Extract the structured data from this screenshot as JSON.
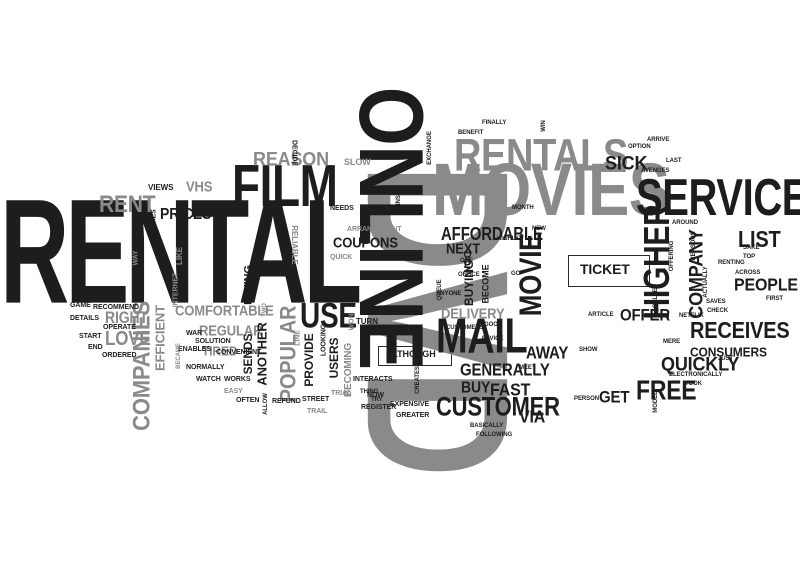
{
  "words": {
    "rental": "Rental",
    "dvd": "DVD",
    "online": "Online",
    "movies": "Movies",
    "service": "Service",
    "film": "Film",
    "rentals": "Rentals",
    "mail": "Mail",
    "customer": "Customer",
    "higher": "Higher",
    "movie": "Movie",
    "companies": "Companies",
    "use": "Use",
    "popular": "Popular",
    "reason": "Reason",
    "rent": "Rent",
    "affordable": "Affordable",
    "receives": "Receives",
    "company": "Company",
    "quickly": "Quickly",
    "free": "Free",
    "list": "List",
    "people": "People",
    "consumers": "Consumers",
    "sick": "Sick",
    "ticket": "Ticket",
    "offer": "Offer",
    "get": "Get",
    "via": "Via",
    "fast": "Fast",
    "buy": "Buy",
    "films": "Films",
    "generally": "Generally",
    "away": "Away",
    "delivery": "Delivery",
    "buying": "Buying",
    "next": "Next",
    "don": "Don",
    "become": "Become",
    "coupons": "Coupons",
    "prices": "Prices",
    "vhs": "VHS",
    "comfortable": "Comfortable",
    "regular": "Regular",
    "love": "Love",
    "right": "Right",
    "efficient": "Efficient",
    "another": "Another",
    "sends": "Sends",
    "tired": "Tired",
    "paying": "Paying",
    "provide": "Provide",
    "users": "Users",
    "becoming": "Becoming",
    "although": "Although",
    "won": "Won",
    "turn": "Turn",
    "slow": "Slow",
    "views": "Views",
    "games": "Games",
    "way": "Way",
    "like": "Like",
    "internet": "Internet",
    "back": "Back",
    "decide": "Decide",
    "reliable": "Reliable",
    "needs": "Needs",
    "quick": "Quick",
    "arrangement": "Arrangement",
    "joins": "Joins",
    "game": "Game",
    "recommend": "Recommend",
    "details": "Details",
    "operate": "Operate",
    "start": "Start",
    "end": "End",
    "ordered": "Ordered",
    "enables": "Enables",
    "became": "Became",
    "war": "War",
    "solution": "Solution",
    "convenient": "Convenient",
    "normally": "Normally",
    "watch": "Watch",
    "works": "Works",
    "easy": "Easy",
    "often": "Often",
    "allow": "Allow",
    "refund": "Refund",
    "line": "Line",
    "looking": "Looking",
    "two": "Two",
    "trial": "Trial",
    "trail": "Trail",
    "street": "Street",
    "register": "Register",
    "now": "Now",
    "interacts": "Interacts",
    "thing": "Thing",
    "try": "Try",
    "expensive": "Expensive",
    "greater": "Greater",
    "creates": "Creates",
    "queue": "Queue",
    "anyone": "Anyone",
    "customers": "Customers",
    "office": "Office",
    "one": "One",
    "good": "Good",
    "highly": "Highly",
    "advice": "Advice",
    "meet": "Meet",
    "go": "Go",
    "new": "New",
    "month": "Month",
    "exchange": "Exchange",
    "benefit": "Benefit",
    "finally": "Finally",
    "win": "Win",
    "basically": "Basically",
    "following": "Following",
    "person": "Person",
    "article": "Article",
    "show": "Show",
    "called": "Called",
    "option": "Option",
    "arrive": "Arrive",
    "last": "Last",
    "avenges": "Avenges",
    "around": "Around",
    "offering": "Offering",
    "reasons": "Reasons",
    "sake": "Sake",
    "top": "Top",
    "renting": "Renting",
    "across": "Across",
    "first": "First",
    "saves": "Saves",
    "check": "Check",
    "netflix": "Netflix",
    "actually": "Actually",
    "mere": "Mere",
    "just": "Just",
    "electronically": "Electronically",
    "took": "Took",
    "model": "Model"
  },
  "colors": {
    "dark": "#1d1d1d",
    "gray": "#8a8a8a",
    "background": "#ffffff"
  }
}
